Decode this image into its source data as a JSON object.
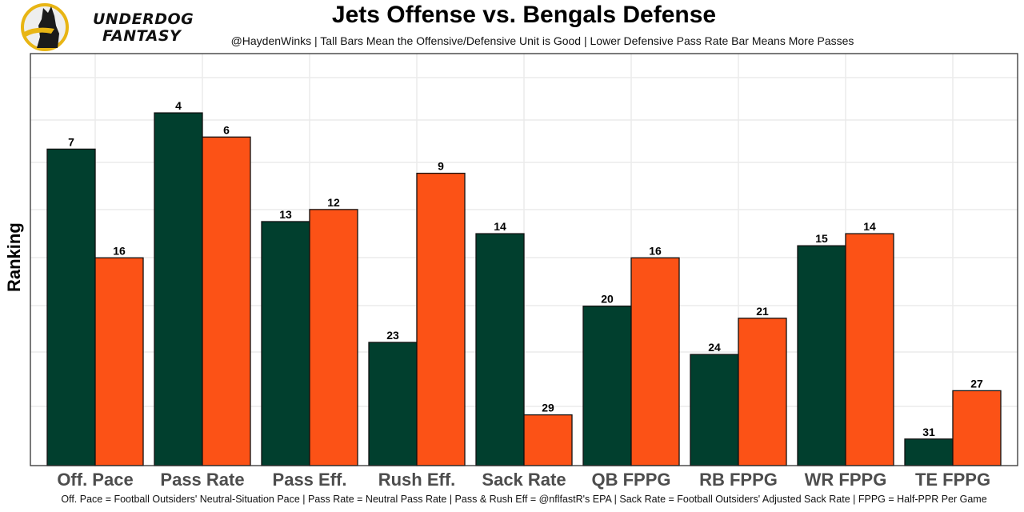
{
  "branding": {
    "logo_line1": "UNDERDOG",
    "logo_line2": "FANTASY",
    "logo_icon": "underdog-dog-icon"
  },
  "chart_data": {
    "type": "bar",
    "title": "Jets Offense vs. Bengals Defense",
    "subtitle": "@HaydenWinks | Tall Bars Mean the Offensive/Defensive Unit is Good | Lower Defensive Pass Rate Bar Means More Passes",
    "xlabel": "",
    "ylabel": "Ranking",
    "footer": "Off. Pace = Football Outsiders' Neutral-Situation Pace | Pass Rate = Neutral Pass Rate | Pass & Rush Eff = @nflfastR's EPA | Sack Rate = Football Outsiders' Adjusted Sack Rate | FPPG = Half-PPR Per Game",
    "categories": [
      "Off. Pace",
      "Pass Rate",
      "Pass Eff.",
      "Rush Eff.",
      "Sack Rate",
      "QB FPPG",
      "RB FPPG",
      "WR FPPG",
      "TE FPPG"
    ],
    "series": [
      {
        "name": "Jets Offense",
        "color": "#013F2E",
        "values": [
          7,
          4,
          13,
          23,
          14,
          20,
          24,
          15,
          31
        ]
      },
      {
        "name": "Bengals Defense",
        "color": "#FC5216",
        "values": [
          16,
          6,
          12,
          9,
          29,
          16,
          21,
          14,
          27
        ]
      }
    ],
    "y_scale": "rank-inverted (rank 1 = tallest)",
    "ylim_rank": [
      1,
      32
    ],
    "grid": true,
    "legend": "none",
    "y_tick_labels": "none"
  }
}
